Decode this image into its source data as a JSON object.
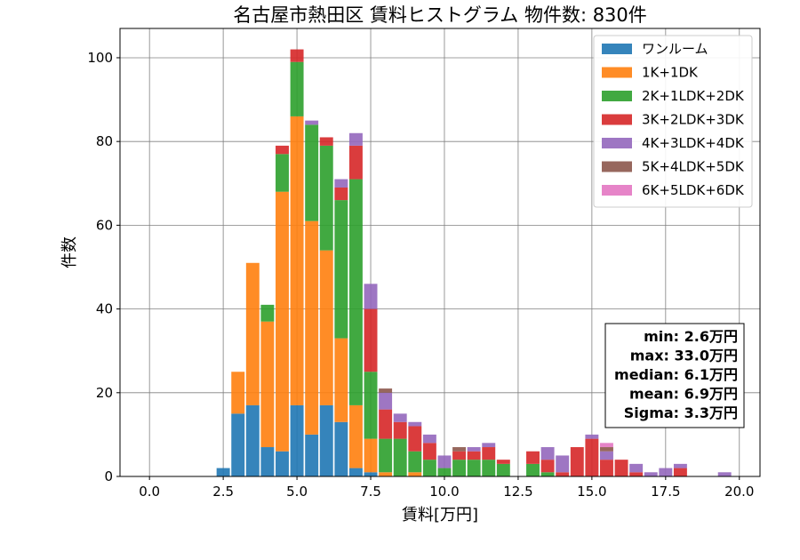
{
  "chart_data": {
    "type": "bar",
    "stacked": true,
    "title": "名古屋市熱田区 賃料ヒストグラム 物件数: 830件",
    "xlabel": "賃料[万円]",
    "ylabel": "件数",
    "xlim": [
      -1.0,
      20.7
    ],
    "ylim": [
      0,
      107
    ],
    "xticks": [
      "0.0",
      "2.5",
      "5.0",
      "7.5",
      "10.0",
      "12.5",
      "15.0",
      "17.5",
      "20.0"
    ],
    "yticks": [
      "0",
      "20",
      "40",
      "60",
      "80",
      "100"
    ],
    "grid": true,
    "legend_position": "top-right",
    "bin_width": 0.5,
    "x": [
      2.5,
      3.0,
      3.5,
      4.0,
      4.5,
      5.0,
      5.5,
      6.0,
      6.5,
      7.0,
      7.5,
      8.0,
      8.5,
      9.0,
      9.5,
      10.0,
      10.5,
      11.0,
      11.5,
      12.0,
      12.5,
      13.0,
      13.5,
      14.0,
      14.5,
      15.0,
      15.5,
      16.0,
      16.5,
      17.0,
      17.5,
      18.0,
      18.5,
      19.0,
      19.5,
      20.0
    ],
    "series": [
      {
        "name": "ワンルーム",
        "color": "#1f77b4",
        "values": [
          2,
          15,
          17,
          7,
          6,
          17,
          10,
          17,
          13,
          2,
          1,
          0,
          0,
          0,
          0,
          0,
          0,
          0,
          0,
          0,
          0,
          0,
          0,
          0,
          0,
          0,
          0,
          0,
          0,
          0,
          0,
          0,
          0,
          0,
          0,
          0
        ]
      },
      {
        "name": "1K+1DK",
        "color": "#ff7f0e",
        "values": [
          0,
          10,
          34,
          30,
          62,
          69,
          51,
          37,
          20,
          15,
          8,
          1,
          0,
          1,
          0,
          0,
          0,
          0,
          0,
          0,
          0,
          0,
          0,
          0,
          0,
          0,
          0,
          0,
          0,
          0,
          0,
          0,
          0,
          0,
          0,
          0
        ]
      },
      {
        "name": "2K+1LDK+2DK",
        "color": "#2ca02c",
        "values": [
          0,
          0,
          0,
          4,
          9,
          13,
          23,
          25,
          33,
          54,
          16,
          8,
          9,
          5,
          4,
          2,
          4,
          4,
          4,
          3,
          0,
          3,
          1,
          0,
          0,
          0,
          0,
          0,
          0,
          0,
          0,
          0,
          0,
          0,
          0,
          0
        ]
      },
      {
        "name": "3K+2LDK+3DK",
        "color": "#d62728",
        "values": [
          0,
          0,
          0,
          0,
          2,
          3,
          0,
          2,
          3,
          8,
          15,
          7,
          4,
          6,
          4,
          0,
          2,
          2,
          3,
          1,
          0,
          3,
          3,
          1,
          7,
          9,
          4,
          4,
          1,
          0,
          0,
          2,
          0,
          0,
          0,
          0
        ]
      },
      {
        "name": "4K+3LDK+4DK",
        "color": "#9467bd",
        "values": [
          0,
          0,
          0,
          0,
          0,
          0,
          1,
          0,
          2,
          3,
          6,
          4,
          2,
          1,
          2,
          3,
          0,
          1,
          1,
          0,
          0,
          0,
          3,
          4,
          0,
          1,
          2,
          0,
          2,
          1,
          2,
          1,
          0,
          0,
          1,
          0
        ]
      },
      {
        "name": "5K+4LDK+5DK",
        "color": "#8c564b",
        "values": [
          0,
          0,
          0,
          0,
          0,
          0,
          0,
          0,
          0,
          0,
          0,
          1,
          0,
          0,
          0,
          0,
          1,
          0,
          0,
          0,
          0,
          0,
          0,
          0,
          0,
          0,
          1,
          0,
          0,
          0,
          0,
          0,
          0,
          0,
          0,
          0
        ]
      },
      {
        "name": "6K+5LDK+6DK",
        "color": "#e377c2",
        "values": [
          0,
          0,
          0,
          0,
          0,
          0,
          0,
          0,
          0,
          0,
          0,
          0,
          0,
          0,
          0,
          0,
          0,
          0,
          0,
          0,
          0,
          0,
          0,
          0,
          0,
          0,
          1,
          0,
          0,
          0,
          0,
          0,
          0,
          0,
          0,
          0
        ]
      }
    ],
    "stats": [
      "min: 2.6万円",
      "max: 33.0万円",
      "median: 6.1万円",
      "mean: 6.9万円",
      "Sigma: 3.3万円"
    ]
  }
}
